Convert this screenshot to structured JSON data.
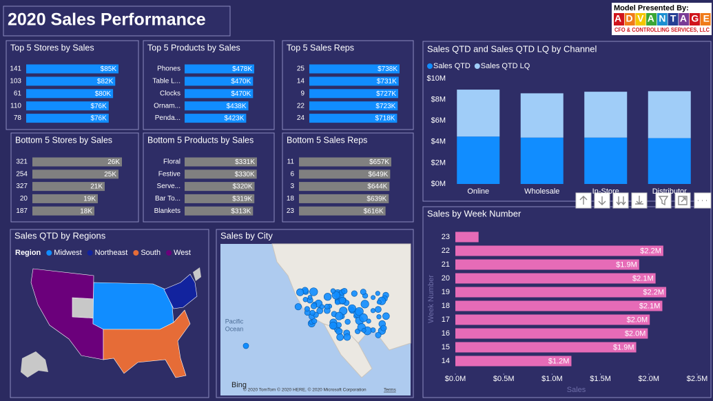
{
  "header": {
    "title": "2020 Sales Performance",
    "logo_caption": "Model Presented By:",
    "logo_name": "ADVANTAGE",
    "logo_subtitle": "CFO & CONTROLLING SERVICES, LLC"
  },
  "chart_data": [
    {
      "type": "hbar",
      "title": "Top 5 Stores by Sales",
      "categories": [
        "141",
        "103",
        "61",
        "110",
        "78"
      ],
      "values": [
        85000,
        82000,
        80000,
        76000,
        76000
      ],
      "value_labels": [
        "$85K",
        "$82K",
        "$80K",
        "$76K",
        "$76K"
      ],
      "color": "#118dff"
    },
    {
      "type": "hbar",
      "title": "Top 5 Products by Sales",
      "categories": [
        "Phones",
        "Table L...",
        "Clocks",
        "Ornam...",
        "Penda..."
      ],
      "values": [
        478000,
        470000,
        470000,
        438000,
        423000
      ],
      "value_labels": [
        "$478K",
        "$470K",
        "$470K",
        "$438K",
        "$423K"
      ],
      "color": "#118dff"
    },
    {
      "type": "hbar",
      "title": "Top 5 Sales Reps",
      "categories": [
        "25",
        "14",
        "9",
        "22",
        "24"
      ],
      "values": [
        738000,
        731000,
        727000,
        723000,
        718000
      ],
      "value_labels": [
        "$738K",
        "$731K",
        "$727K",
        "$723K",
        "$718K"
      ],
      "color": "#118dff"
    },
    {
      "type": "hbar",
      "title": "Bottom 5 Stores by Sales",
      "categories": [
        "321",
        "254",
        "327",
        "20",
        "187"
      ],
      "values": [
        26000,
        25000,
        21000,
        19000,
        18000
      ],
      "value_labels": [
        "26K",
        "25K",
        "21K",
        "19K",
        "18K"
      ],
      "color": "#808080"
    },
    {
      "type": "hbar",
      "title": "Bottom 5 Products by Sales",
      "categories": [
        "Floral",
        "Festive",
        "Serve...",
        "Bar To...",
        "Blankets"
      ],
      "values": [
        331000,
        330000,
        320000,
        319000,
        313000
      ],
      "value_labels": [
        "$331K",
        "$330K",
        "$320K",
        "$319K",
        "$313K"
      ],
      "color": "#808080"
    },
    {
      "type": "hbar",
      "title": "Bottom 5 Sales Reps",
      "categories": [
        "11",
        "6",
        "3",
        "18",
        "23"
      ],
      "values": [
        657000,
        649000,
        644000,
        639000,
        616000
      ],
      "value_labels": [
        "$657K",
        "$649K",
        "$644K",
        "$639K",
        "$616K"
      ],
      "color": "#808080"
    },
    {
      "type": "stacked_bar",
      "title": "Sales QTD and Sales QTD LQ by Channel",
      "categories": [
        "Online",
        "Wholesale",
        "In-Store",
        "Distributor"
      ],
      "series": [
        {
          "name": "Sales QTD",
          "color": "#118dff",
          "values": [
            4500000,
            4400000,
            4400000,
            4350000
          ]
        },
        {
          "name": "Sales QTD LQ",
          "color": "#a0cdf8",
          "values": [
            4450000,
            4200000,
            4350000,
            4450000
          ]
        }
      ],
      "ylim": [
        0,
        10000000
      ],
      "yticks": [
        {
          "value": 0,
          "label": "$0M"
        },
        {
          "value": 2000000,
          "label": "$2M"
        },
        {
          "value": 4000000,
          "label": "$4M"
        },
        {
          "value": 6000000,
          "label": "$6M"
        },
        {
          "value": 8000000,
          "label": "$8M"
        },
        {
          "value": 10000000,
          "label": "$10M"
        }
      ]
    },
    {
      "type": "hbar",
      "title": "Sales by Week Number",
      "categories": [
        "23",
        "22",
        "21",
        "20",
        "19",
        "18",
        "17",
        "16",
        "15",
        "14"
      ],
      "values": [
        240000,
        2150000,
        1900000,
        2070000,
        2180000,
        2140000,
        2010000,
        1990000,
        1870000,
        1200000
      ],
      "value_labels": [
        null,
        "$2.2M",
        "$1.9M",
        "$2.1M",
        "$2.2M",
        "$2.1M",
        "$2.0M",
        "$2.0M",
        "$1.9M",
        "$1.2M"
      ],
      "color": "#e66bb7",
      "xlim": [
        0,
        2500000
      ],
      "xticks": [
        {
          "value": 0,
          "label": "$0.0M"
        },
        {
          "value": 500000,
          "label": "$0.5M"
        },
        {
          "value": 1000000,
          "label": "$1.0M"
        },
        {
          "value": 1500000,
          "label": "$1.5M"
        },
        {
          "value": 2000000,
          "label": "$2.0M"
        },
        {
          "value": 2500000,
          "label": "$2.5M"
        }
      ],
      "x_label": "Sales",
      "y_label": "Week Number"
    }
  ],
  "maps": [
    {
      "title": "Sales QTD by Regions",
      "legend_title": "Region",
      "legend": [
        {
          "name": "Midwest",
          "color": "#118dff"
        },
        {
          "name": "Northeast",
          "color": "#12239e"
        },
        {
          "name": "South",
          "color": "#e66c37"
        },
        {
          "name": "West",
          "color": "#6b007b"
        }
      ]
    },
    {
      "title": "Sales by City",
      "ocean_label": [
        "Pacific",
        "Ocean"
      ],
      "provider": "Bing",
      "copyright": "© 2020 TomTom © 2020 HERE, © 2020 Microsoft Corporation",
      "terms": "Terms"
    }
  ]
}
